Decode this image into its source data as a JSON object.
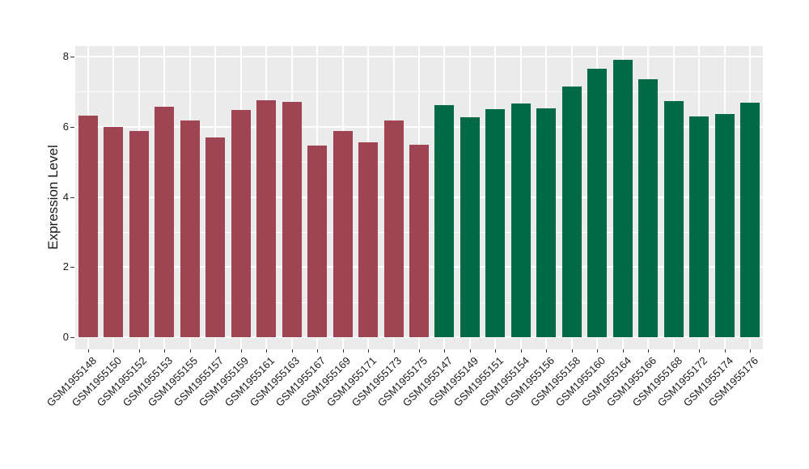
{
  "chart_data": {
    "type": "bar",
    "title": "",
    "xlabel": "",
    "ylabel": "Expression Level",
    "ylim": [
      0,
      8.3
    ],
    "yticks": [
      0,
      2,
      4,
      6,
      8
    ],
    "yticks_minor": [
      1,
      3,
      5,
      7
    ],
    "grid": true,
    "legend_position": "none",
    "panel_background": "#EBEBEB",
    "gridline_color": "#FFFFFF",
    "axis_text_color": "#1A1A1A",
    "tick_mark_color": "#333333",
    "categories": [
      "GSM1955148",
      "GSM1955150",
      "GSM1955152",
      "GSM1955153",
      "GSM1955155",
      "GSM1955157",
      "GSM1955159",
      "GSM1955161",
      "GSM1955163",
      "GSM1955167",
      "GSM1955169",
      "GSM1955171",
      "GSM1955173",
      "GSM1955175",
      "GSM1955147",
      "GSM1955149",
      "GSM1955151",
      "GSM1955154",
      "GSM1955156",
      "GSM1955158",
      "GSM1955160",
      "GSM1955164",
      "GSM1955166",
      "GSM1955168",
      "GSM1955172",
      "GSM1955174",
      "GSM1955176"
    ],
    "values": [
      6.31,
      6.0,
      5.87,
      6.58,
      6.18,
      5.69,
      6.47,
      6.76,
      6.72,
      5.47,
      5.88,
      5.55,
      6.18,
      5.49,
      6.61,
      6.27,
      6.5,
      6.66,
      6.53,
      7.15,
      7.65,
      7.9,
      7.35,
      6.74,
      6.29,
      6.37,
      6.69
    ],
    "bar_groups": [
      "maroon",
      "maroon",
      "maroon",
      "maroon",
      "maroon",
      "maroon",
      "maroon",
      "maroon",
      "maroon",
      "maroon",
      "maroon",
      "maroon",
      "maroon",
      "maroon",
      "green",
      "green",
      "green",
      "green",
      "green",
      "green",
      "green",
      "green",
      "green",
      "green",
      "green",
      "green",
      "green"
    ],
    "palette": {
      "maroon": "#9E4452",
      "green": "#006A47"
    }
  }
}
